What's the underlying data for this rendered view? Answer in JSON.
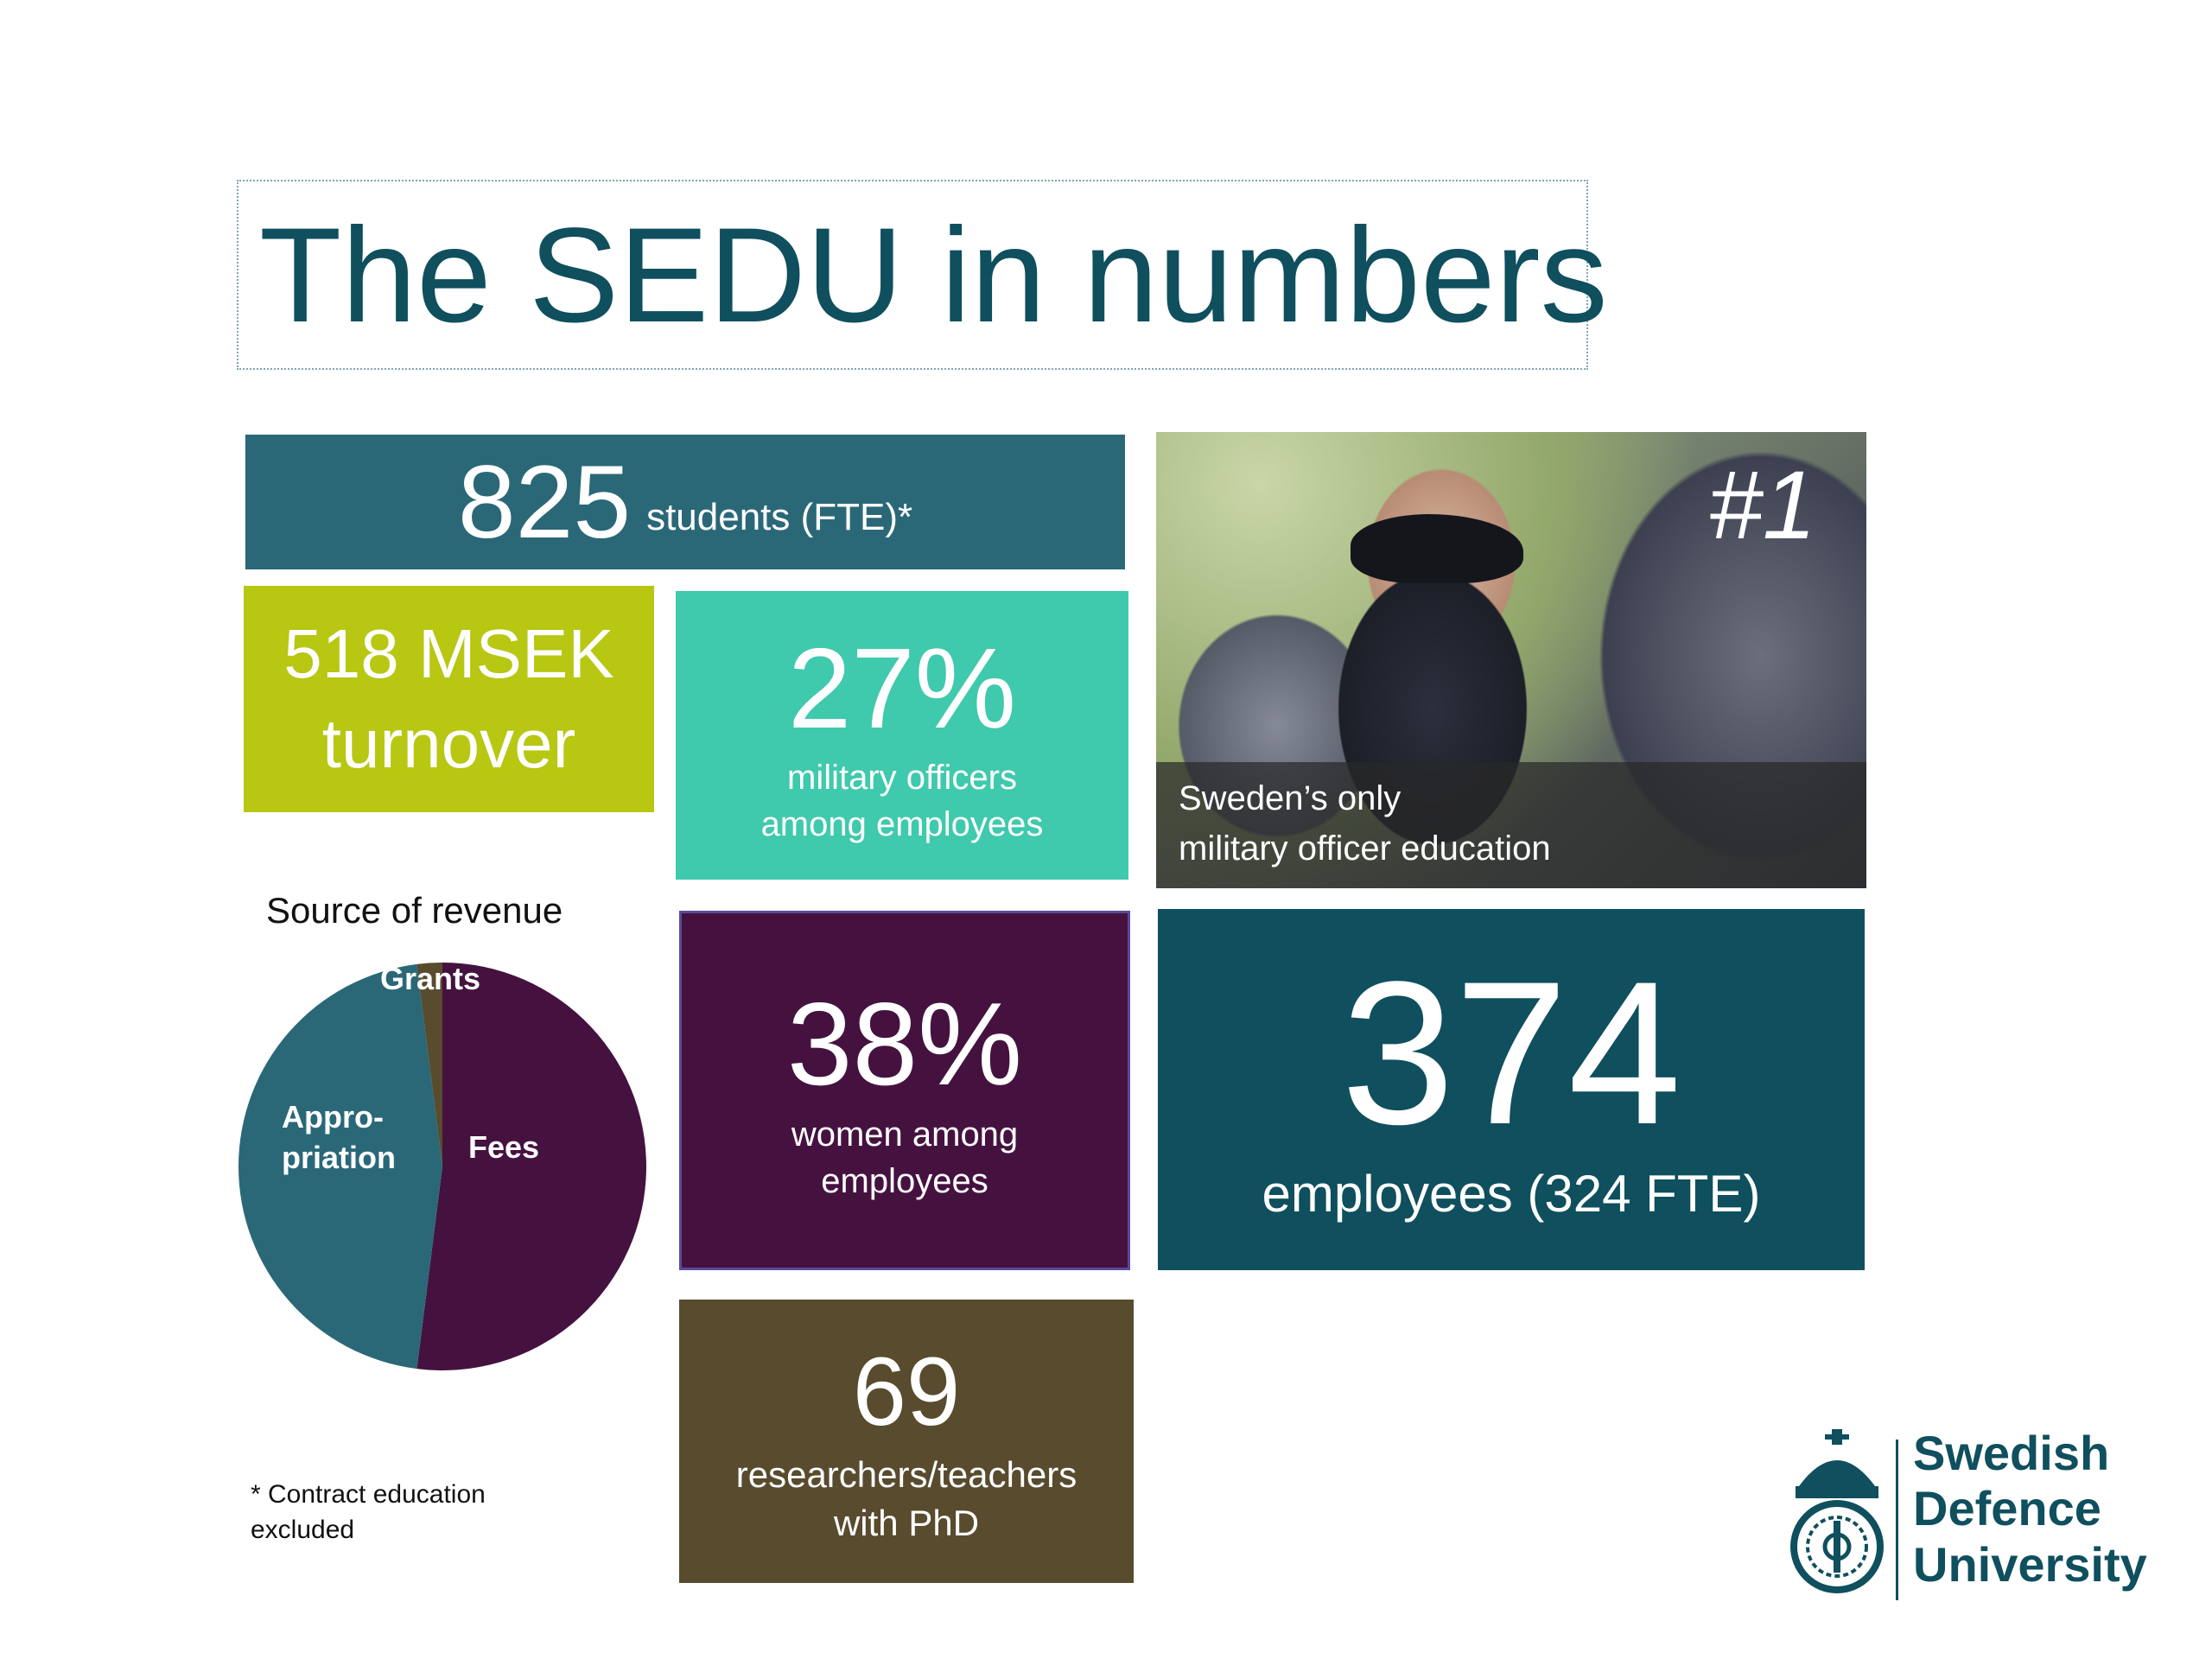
{
  "title": "The SEDU in numbers",
  "tiles": {
    "students": {
      "number": "825",
      "label": "students (FTE)*",
      "color": "#2a6878"
    },
    "turnover": {
      "line1": "518 MSEK",
      "line2": "turnover",
      "color": "#b7c712"
    },
    "officers": {
      "number": "27%",
      "line1": "military officers",
      "line2": "among employees",
      "color": "#3fc9ad"
    },
    "women": {
      "number": "38%",
      "line1": "women among",
      "line2": "employees",
      "color": "#451240"
    },
    "employees": {
      "number": "374",
      "label": "employees (324 FTE)",
      "color": "#0f4f5e"
    },
    "phd": {
      "number": "69",
      "line1": "researchers/teachers",
      "line2": "with PhD",
      "color": "#584b2e"
    }
  },
  "photo": {
    "badge": "#1",
    "caption_line1": "Sweden’s only",
    "caption_line2": "military officer education"
  },
  "revenue": {
    "title": "Source of revenue",
    "slices": [
      {
        "label": "Fees",
        "value": 52,
        "color": "#451240"
      },
      {
        "label": "Appro-\npriation",
        "value": 46,
        "color": "#2a6878"
      },
      {
        "label": "Grants",
        "value": 2,
        "color": "#584b2e"
      }
    ]
  },
  "footnote": {
    "line1": "* Contract education",
    "line2": "excluded"
  },
  "logo": {
    "line1": "Swedish",
    "line2": "Defence",
    "line3": "University"
  }
}
